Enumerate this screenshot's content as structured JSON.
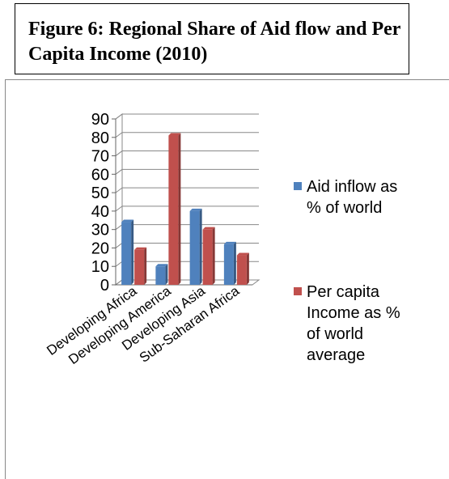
{
  "title": "Figure 6: Regional Share of Aid flow and Per Capita Income (2010)",
  "chart_data": {
    "type": "bar",
    "categories": [
      "Developing Africa",
      "Developing America",
      "Developing Asia",
      "Sub-Saharan Africa"
    ],
    "series": [
      {
        "name": "Aid inflow as % of world",
        "values": [
          34,
          10,
          40,
          22
        ],
        "color": "#4f81bd"
      },
      {
        "name": "Per capita Income as % of world average",
        "values": [
          19,
          81,
          30,
          16
        ],
        "color": "#c0504d"
      }
    ],
    "ylim": [
      0,
      90
    ],
    "yticks": [
      "0",
      "10",
      "20",
      "30",
      "40",
      "50",
      "60",
      "70",
      "80",
      "90"
    ],
    "grid": true,
    "legend_position": "right",
    "legend": [
      {
        "series": 0,
        "lines": [
          "Aid inflow as",
          "% of world"
        ]
      },
      {
        "series": 1,
        "lines": [
          "Per capita",
          "Income as %",
          "of world",
          "average"
        ]
      }
    ]
  }
}
